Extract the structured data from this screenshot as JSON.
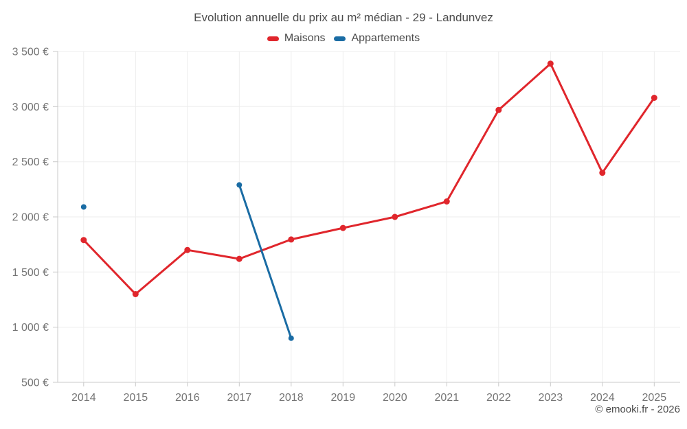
{
  "header": {
    "title": "Evolution annuelle du prix au m² médian - 29 - Landunvez"
  },
  "legend": {
    "items": [
      {
        "label": "Maisons",
        "color": "#e0262c"
      },
      {
        "label": "Appartements",
        "color": "#1a6ca4"
      }
    ],
    "position": "top"
  },
  "footer": {
    "credit": "© emooki.fr - 2026"
  },
  "chart_data": {
    "type": "line",
    "title": "Evolution annuelle du prix au m² médian - 29 - Landunvez",
    "categories": [
      "2014",
      "2015",
      "2016",
      "2017",
      "2018",
      "2019",
      "2020",
      "2021",
      "2022",
      "2023",
      "2024",
      "2025"
    ],
    "series": [
      {
        "name": "Maisons",
        "color": "#e0262c",
        "values": [
          1790,
          1300,
          1700,
          1620,
          1795,
          1900,
          2000,
          2140,
          2970,
          3390,
          2400,
          3080
        ]
      },
      {
        "name": "Appartements",
        "color": "#1a6ca4",
        "values": [
          2090,
          null,
          null,
          2290,
          900,
          null,
          null,
          null,
          null,
          null,
          null,
          null
        ]
      }
    ],
    "xlabel": "",
    "ylabel": "",
    "ylim": [
      500,
      3500
    ],
    "ytick_step": 500,
    "ytick_suffix": " €",
    "grid": true,
    "legend_position": "top",
    "axis_color": "#c8c8c8",
    "grid_color": "#ededed",
    "tick_label_color": "#757575"
  }
}
